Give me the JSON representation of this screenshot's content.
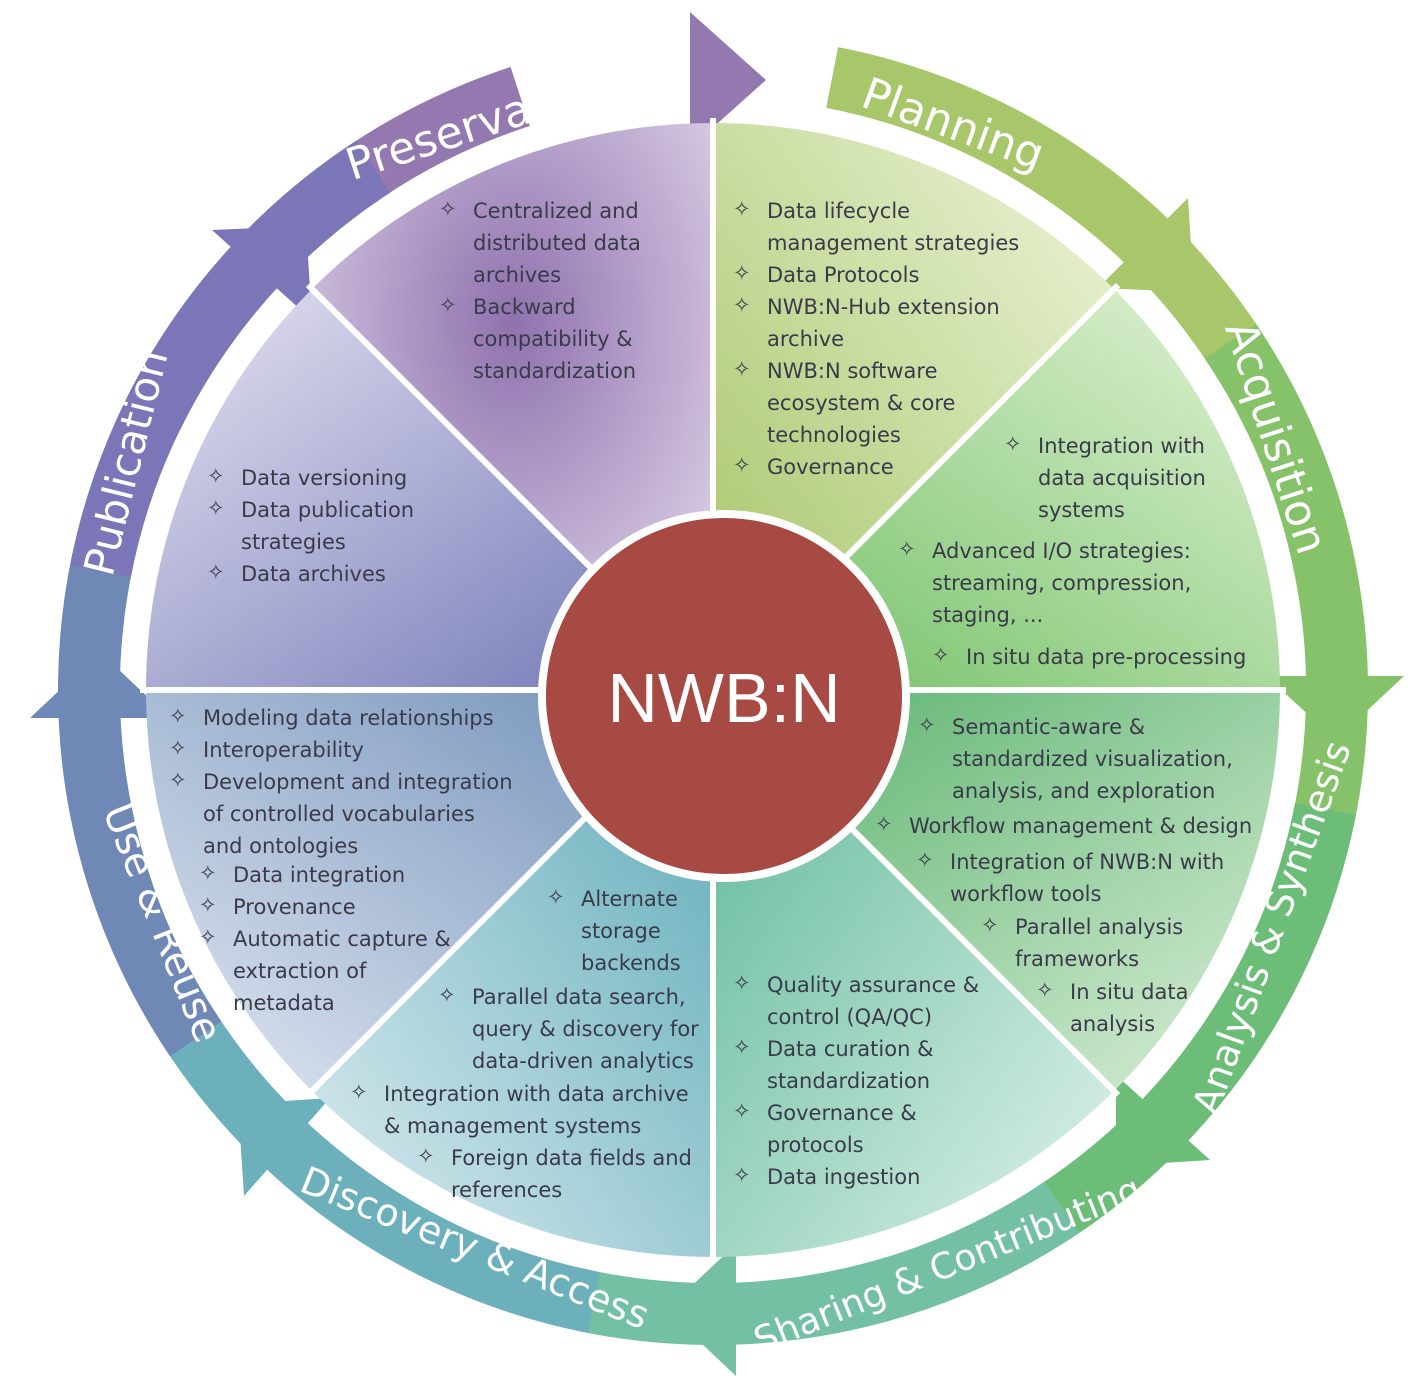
{
  "center": {
    "label": "NWB:N",
    "color": "#a84a44"
  },
  "stages": [
    {
      "id": "preservation",
      "label": "Preservation",
      "color": "#9478b0"
    },
    {
      "id": "planning",
      "label": "Planning",
      "color": "#a8c66a"
    },
    {
      "id": "acquisition",
      "label": "Acquisition",
      "color": "#86c26a"
    },
    {
      "id": "analysis",
      "label": "Analysis & Synthesis",
      "color": "#6cbd78"
    },
    {
      "id": "sharing",
      "label": "Sharing & Contributing",
      "color": "#74c0a2"
    },
    {
      "id": "discovery",
      "label": "Discovery & Access",
      "color": "#6cb0bc"
    },
    {
      "id": "use",
      "label": "Use & Reuse",
      "color": "#7088b6"
    },
    {
      "id": "publication",
      "label": "Publication",
      "color": "#7a76b8"
    }
  ],
  "bullet_symbol": "✧",
  "sectors": {
    "preservation": [
      "Centralized and",
      "distributed data",
      "archives",
      "Backward",
      "compatibility &",
      "standardization"
    ],
    "planning": [
      "Data lifecycle",
      "management strategies",
      "Data Protocols",
      "NWB:N-Hub extension",
      "archive",
      "NWB:N software",
      "ecosystem & core",
      "technologies",
      "Governance"
    ],
    "acquisition": [
      "Integration with",
      "data acquisition",
      "systems",
      "Advanced I/O strategies:",
      "streaming, compression,",
      "staging, ...",
      "In situ data pre-processing"
    ],
    "analysis": [
      "Semantic-aware &",
      "standardized visualization,",
      "analysis, and exploration",
      "Workflow management & design",
      "Integration of NWB:N with",
      "workflow tools",
      "Parallel analysis",
      "frameworks",
      "In situ data",
      "analysis"
    ],
    "sharing": [
      "Quality assurance &",
      "control (QA/QC)",
      "Data curation &",
      "standardization",
      "Governance &",
      "protocols",
      "Data ingestion"
    ],
    "discovery": [
      "Alternate",
      "storage",
      "backends",
      "Parallel data search,",
      "query & discovery for",
      "data-driven analytics",
      "Integration with data archive",
      "& management systems",
      "Foreign data fields and",
      "references"
    ],
    "use": [
      "Modeling data relationships",
      "Interoperability",
      "Development and integration",
      "of controlled vocabularies",
      "and ontologies",
      "Data integration",
      "Provenance",
      "Automatic capture &",
      "extraction of",
      "metadata"
    ],
    "publication": [
      "Data versioning",
      "Data publication",
      "strategies",
      "Data archives"
    ]
  }
}
